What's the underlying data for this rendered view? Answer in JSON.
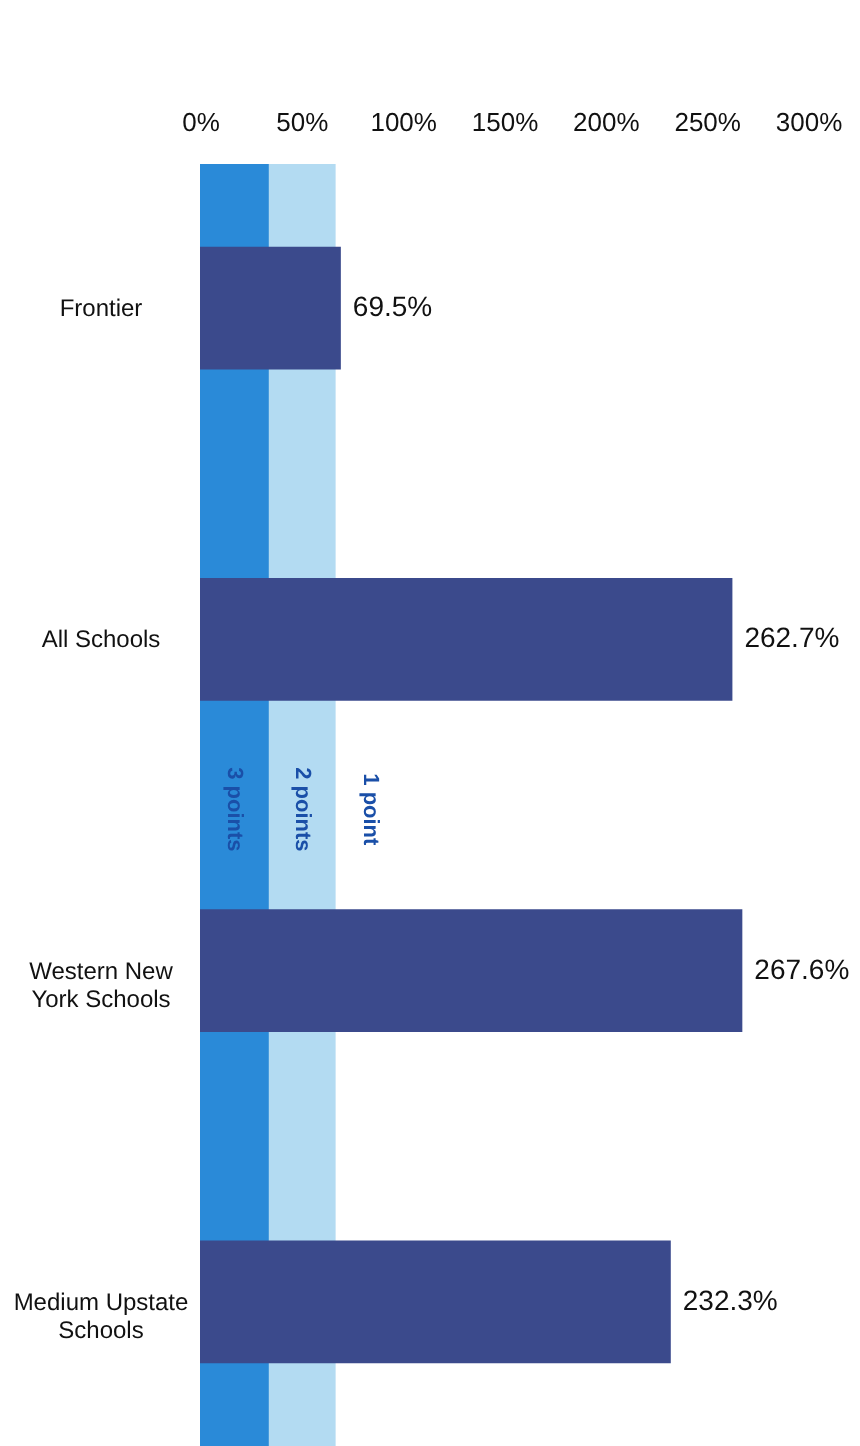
{
  "chart_data": {
    "type": "bar",
    "orientation": "horizontal",
    "categories": [
      "Frontier",
      "All Schools",
      "Western New York Schools",
      "Medium Upstate Schools"
    ],
    "values": [
      69.5,
      262.7,
      267.6,
      232.3
    ],
    "value_labels": [
      "69.5%",
      "262.7%",
      "267.6%",
      "232.3%"
    ],
    "color": "#3b4a8c",
    "xlim": [
      0,
      300
    ],
    "xticks": [
      {
        "value": 0,
        "label": "0%"
      },
      {
        "value": 50,
        "label": "50%"
      },
      {
        "value": 100,
        "label": "100%"
      },
      {
        "value": 150,
        "label": "150%"
      },
      {
        "value": 200,
        "label": "200%"
      },
      {
        "value": 250,
        "label": "250%"
      },
      {
        "value": 300,
        "label": "300%"
      }
    ],
    "bands": [
      {
        "axis": "x",
        "from": 0,
        "to": 34,
        "label": "3 points",
        "color": "#2a8ad8"
      },
      {
        "axis": "x",
        "from": 34,
        "to": 67,
        "label": "2 points",
        "color": "#b3dbf2"
      },
      {
        "axis": "x",
        "from": 67,
        "to": 300,
        "label": "1 point",
        "color": "#ffffff"
      }
    ],
    "grid": false
  }
}
